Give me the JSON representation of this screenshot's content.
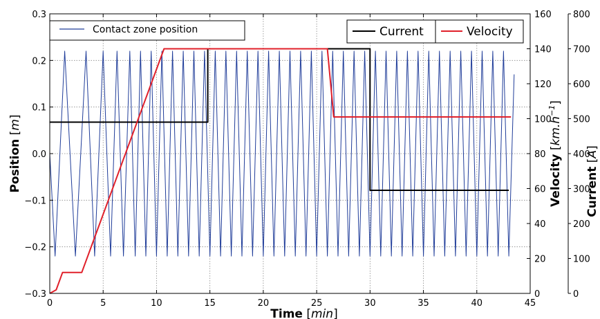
{
  "chart_data": {
    "type": "line",
    "grid": true,
    "xlabel": {
      "bold": "Time",
      "unit": "min"
    },
    "xlim": [
      0,
      45
    ],
    "x_ticks": [
      0,
      5,
      10,
      15,
      20,
      25,
      30,
      35,
      40,
      45
    ],
    "axes": {
      "position": {
        "label_bold": "Position",
        "unit": "m",
        "ylim": [
          -0.3,
          0.3
        ],
        "ticks": [
          -0.3,
          -0.2,
          -0.1,
          0.0,
          0.1,
          0.2,
          0.3
        ],
        "tick_labels": [
          "−0.3",
          "−0.2",
          "−0.1",
          "0.0",
          "0.1",
          "0.2",
          "0.3"
        ]
      },
      "velocity": {
        "label_bold": "Velocity",
        "unit_base": "km.h",
        "unit_exp": "−1",
        "ylim": [
          0,
          160
        ],
        "ticks": [
          0,
          20,
          40,
          60,
          80,
          100,
          120,
          140,
          160
        ]
      },
      "current": {
        "label_bold": "Current",
        "unit": "A",
        "ylim": [
          0,
          800
        ],
        "ticks": [
          0,
          100,
          200,
          300,
          400,
          500,
          600,
          700,
          800
        ]
      }
    },
    "legends": [
      {
        "location": "top-left",
        "entries": [
          {
            "label": "Contact zone position",
            "color": "#1f3c99"
          }
        ]
      },
      {
        "location": "top-right",
        "entries": [
          {
            "label": "Current",
            "color": "#000000"
          },
          {
            "label": "Velocity",
            "color": "#e0202a"
          }
        ]
      }
    ],
    "series": [
      {
        "name": "Contact zone position",
        "axis": "position",
        "color": "#1f3c99",
        "amplitude": [
          -0.22,
          0.22
        ],
        "x": [
          0,
          0.5,
          1.4,
          2.4,
          3.4,
          4.2,
          5.0,
          5.7,
          6.3,
          6.9,
          7.5,
          8.0,
          8.5,
          9.0,
          9.5,
          10.0,
          10.5,
          11.0,
          11.5,
          12.0,
          12.5,
          13.0,
          13.5,
          14.0,
          14.5,
          15.0,
          15.5,
          16.0,
          16.5,
          17.0,
          17.5,
          18.0,
          18.5,
          19.0,
          19.5,
          20.0,
          20.5,
          21.0,
          21.5,
          22.0,
          22.5,
          23.0,
          23.5,
          24.0,
          24.5,
          25.0,
          25.5,
          26.0,
          26.5,
          27.0,
          27.5,
          28.0,
          28.5,
          29.0,
          29.5,
          30.0,
          30.5,
          31.0,
          31.5,
          32.0,
          32.5,
          33.0,
          33.5,
          34.0,
          34.5,
          35.0,
          35.5,
          36.0,
          36.5,
          37.0,
          37.5,
          38.0,
          38.5,
          39.0,
          39.5,
          40.0,
          40.5,
          41.0,
          41.5,
          42.0,
          42.5,
          43.0,
          43.5
        ],
        "y": [
          0.0,
          -0.22,
          0.22,
          -0.22,
          0.22,
          -0.22,
          0.22,
          -0.22,
          0.22,
          -0.22,
          0.22,
          -0.22,
          0.22,
          -0.22,
          0.22,
          -0.22,
          0.22,
          -0.22,
          0.22,
          -0.22,
          0.22,
          -0.22,
          0.22,
          -0.22,
          0.22,
          -0.22,
          0.22,
          -0.22,
          0.22,
          -0.22,
          0.22,
          -0.22,
          0.22,
          -0.22,
          0.22,
          -0.22,
          0.22,
          -0.22,
          0.22,
          -0.22,
          0.22,
          -0.22,
          0.22,
          -0.22,
          0.22,
          -0.22,
          0.22,
          -0.22,
          0.22,
          -0.22,
          0.22,
          -0.22,
          0.22,
          -0.22,
          0.22,
          -0.22,
          0.22,
          -0.22,
          0.22,
          -0.22,
          0.22,
          -0.22,
          0.22,
          -0.22,
          0.22,
          -0.22,
          0.22,
          -0.22,
          0.22,
          -0.22,
          0.22,
          -0.22,
          0.22,
          -0.22,
          0.22,
          -0.22,
          0.22,
          -0.22,
          0.22,
          -0.22,
          0.22,
          -0.22,
          0.17
        ]
      },
      {
        "name": "Current",
        "axis": "current",
        "color": "#000000",
        "x": [
          0,
          14.8,
          14.8,
          30.0,
          30.0,
          43.0
        ],
        "y": [
          490,
          490,
          700,
          700,
          295,
          295
        ]
      },
      {
        "name": "Velocity",
        "axis": "velocity",
        "color": "#e0202a",
        "x": [
          0,
          0.6,
          1.2,
          3.0,
          10.7,
          15.0,
          26.0,
          26.6,
          30.0,
          43.2
        ],
        "y": [
          0,
          2,
          12,
          12,
          140,
          140,
          140,
          101,
          101,
          101
        ]
      }
    ]
  }
}
